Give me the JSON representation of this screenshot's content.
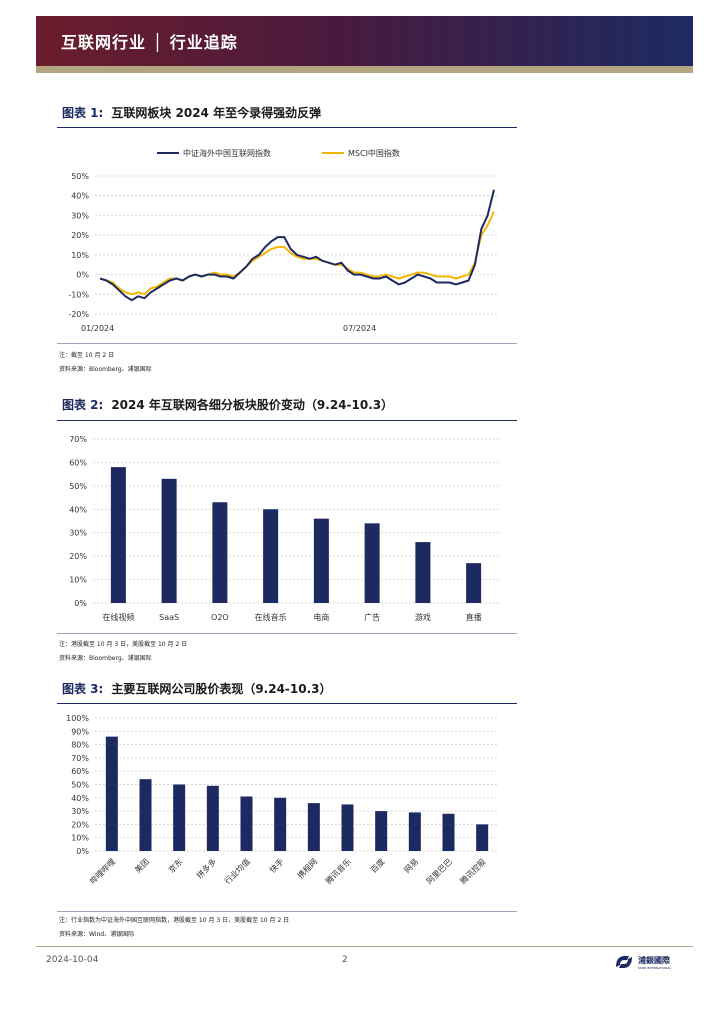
{
  "header": {
    "title": "互联网行业 │ 行业追踪"
  },
  "fig1": {
    "label": "图表 1:",
    "title": "互联网板块 2024 年至今录得强劲反弹",
    "legend": [
      "中证海外中国互联网指数",
      "MSCI中国指数"
    ],
    "note": "注：截至 10 月 2 日",
    "source": "资料来源：Bloomberg、浦银国际"
  },
  "fig2": {
    "label": "图表 2:",
    "title": "2024 年互联网各细分板块股价变动（9.24-10.3）",
    "note": "注：港股截至 10 月 3 日，美股截至 10 月 2 日",
    "source": "资料来源：Bloomberg、浦银国际"
  },
  "fig3": {
    "label": "图表 3:",
    "title": "主要互联网公司股价表现（9.24-10.3）",
    "note": "注：行业指数为中证海外中国互联网指数，港股截至 10 月 3 日，美股截至 10 月 2 日",
    "source": "资料来源：Wind、浦银国际"
  },
  "footer": {
    "date": "2024-10-04",
    "page": "2",
    "logo_text": "浦銀國際",
    "logo_sub": "SPDB INTERNATIONAL"
  },
  "colors": {
    "navy": "#1d2a62",
    "gold": "#f2b705",
    "maroon": "#6b1d2c",
    "grid": "#cccccc"
  },
  "chart_data": [
    {
      "type": "line",
      "x_ticks": [
        "01/2024",
        "07/2024"
      ],
      "ylim": [
        -20,
        50
      ],
      "yticks": [
        "-20%",
        "-10%",
        "0%",
        "10%",
        "20%",
        "30%",
        "40%",
        "50%"
      ],
      "grid": true,
      "legend_position": "top",
      "series": [
        {
          "name": "中证海外中国互联网指数",
          "color": "#1d2a62",
          "values": [
            -2,
            -3,
            -5,
            -8,
            -11,
            -13,
            -11,
            -12,
            -9,
            -7,
            -5,
            -3,
            -2,
            -3,
            -1,
            0,
            -1,
            0,
            0,
            -1,
            -1,
            -2,
            1,
            4,
            8,
            10,
            14,
            17,
            19,
            19,
            13,
            10,
            9,
            8,
            9,
            7,
            6,
            5,
            6,
            2,
            0,
            0,
            -1,
            -2,
            -2,
            -1,
            -3,
            -5,
            -4,
            -2,
            0,
            -1,
            -2,
            -4,
            -4,
            -4,
            -5,
            -4,
            -3,
            5,
            23,
            30,
            43
          ]
        },
        {
          "name": "MSCI中国指数",
          "color": "#f2b705",
          "values": [
            -2,
            -3,
            -4,
            -7,
            -9,
            -10,
            -9,
            -10,
            -7,
            -6,
            -4,
            -2,
            -2,
            -3,
            -1,
            0,
            -1,
            0,
            1,
            0,
            0,
            -1,
            1,
            4,
            7,
            9,
            11,
            13,
            14,
            14,
            11,
            9,
            8,
            8,
            8,
            7,
            6,
            5,
            5,
            3,
            1,
            1,
            0,
            -1,
            -1,
            0,
            -1,
            -2,
            -1,
            0,
            1,
            1,
            0,
            -1,
            -1,
            -1,
            -2,
            -1,
            0,
            6,
            20,
            25,
            32
          ]
        }
      ]
    },
    {
      "type": "bar",
      "categories": [
        "在线视频",
        "SaaS",
        "O2O",
        "在线音乐",
        "电商",
        "广告",
        "游戏",
        "直播"
      ],
      "values": [
        58,
        53,
        43,
        40,
        36,
        34,
        26,
        17
      ],
      "ylim": [
        0,
        70
      ],
      "yticks": [
        "0%",
        "10%",
        "20%",
        "30%",
        "40%",
        "50%",
        "60%",
        "70%"
      ],
      "grid": true,
      "color": "#1d2a62"
    },
    {
      "type": "bar",
      "categories": [
        "哔哩哔哩",
        "美团",
        "京东",
        "拼多多",
        "行业均值",
        "快手",
        "携程网",
        "腾讯音乐",
        "百度",
        "网易",
        "阿里巴巴",
        "腾讯控股"
      ],
      "values": [
        86,
        54,
        50,
        49,
        41,
        40,
        36,
        35,
        30,
        29,
        28,
        20
      ],
      "ylim": [
        0,
        100
      ],
      "yticks": [
        "0%",
        "10%",
        "20%",
        "30%",
        "40%",
        "50%",
        "60%",
        "70%",
        "80%",
        "90%",
        "100%"
      ],
      "grid": true,
      "color": "#1d2a62"
    }
  ]
}
